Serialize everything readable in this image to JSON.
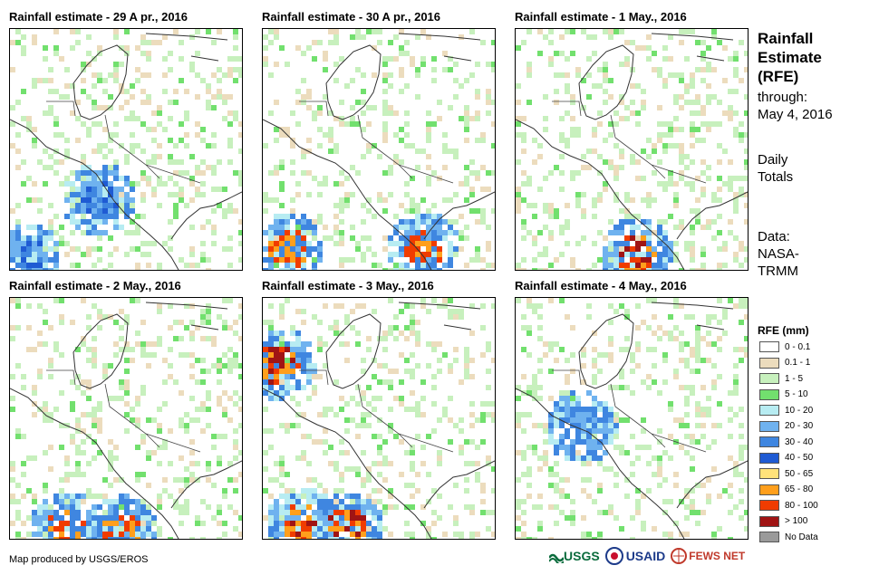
{
  "panels": [
    {
      "title": "Rainfall estimate - 29 A pr., 2016"
    },
    {
      "title": "Rainfall estimate - 30 A pr., 2016"
    },
    {
      "title": "Rainfall estimate - 1 May., 2016"
    },
    {
      "title": "Rainfall estimate - 2 May., 2016"
    },
    {
      "title": "Rainfall estimate - 3 May., 2016"
    },
    {
      "title": "Rainfall estimate - 4 May., 2016"
    }
  ],
  "sidebar": {
    "title_line1": "Rainfall",
    "title_line2": "Estimate",
    "title_line3": "(RFE)",
    "through_label": "through:",
    "through_date": "May 4, 2016",
    "totals_line1": "Daily",
    "totals_line2": "Totals",
    "data_line1": "Data:",
    "data_line2": "NASA-",
    "data_line3": "TRMM"
  },
  "legend": {
    "title": "RFE (mm)",
    "items": [
      {
        "label": "0 - 0.1",
        "color": "#ffffff"
      },
      {
        "label": "0.1 - 1",
        "color": "#ecdcbd"
      },
      {
        "label": "1 - 5",
        "color": "#c7f0bd"
      },
      {
        "label": "5 - 10",
        "color": "#72e06e"
      },
      {
        "label": "10 - 20",
        "color": "#b7ecf2"
      },
      {
        "label": "20 - 30",
        "color": "#6fb2ef"
      },
      {
        "label": "30 - 40",
        "color": "#3f86e0"
      },
      {
        "label": "40 - 50",
        "color": "#1f5bd3"
      },
      {
        "label": "50 - 65",
        "color": "#ffe27a"
      },
      {
        "label": "65 - 80",
        "color": "#ff9f1c"
      },
      {
        "label": "80 - 100",
        "color": "#f03c00"
      },
      {
        "label": "> 100",
        "color": "#a01414"
      },
      {
        "label": "No Data",
        "color": "#9a9a9a"
      }
    ]
  },
  "footer": {
    "credit": "Map produced by USGS/EROS"
  },
  "logos": {
    "usgs": "USGS",
    "usaid": "USAID",
    "fewsnet": "FEWS NET"
  }
}
